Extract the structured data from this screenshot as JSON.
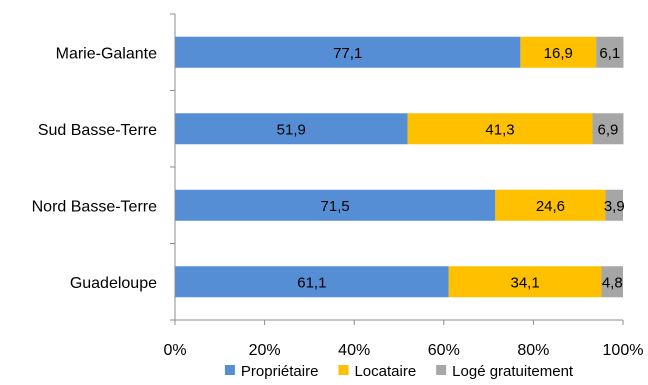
{
  "chart_data": {
    "type": "bar",
    "orientation": "horizontal",
    "stacked": "percent",
    "categories": [
      "Marie-Galante",
      "Sud Basse-Terre",
      "Nord Basse-Terre",
      "Guadeloupe"
    ],
    "series": [
      {
        "name": "Propriétaire",
        "color": "#558ed5",
        "values": [
          77.1,
          51.9,
          71.5,
          61.1
        ],
        "labels": [
          "77,1",
          "51,9",
          "71,5",
          "61,1"
        ]
      },
      {
        "name": "Locataire",
        "color": "#ffc000",
        "values": [
          16.9,
          41.3,
          24.6,
          34.1
        ],
        "labels": [
          "16,9",
          "41,3",
          "24,6",
          "34,1"
        ]
      },
      {
        "name": "Logé gratuitement",
        "color": "#a6a6a6",
        "values": [
          6.1,
          6.9,
          3.9,
          4.8
        ],
        "labels": [
          "6,1",
          "6,9",
          "3,9",
          "4,8"
        ]
      }
    ],
    "xlim": [
      0,
      100
    ],
    "x_ticks": [
      "0%",
      "20%",
      "40%",
      "60%",
      "80%",
      "100%"
    ],
    "grid": false,
    "legend_position": "bottom",
    "title": "",
    "xlabel": "",
    "ylabel": ""
  }
}
